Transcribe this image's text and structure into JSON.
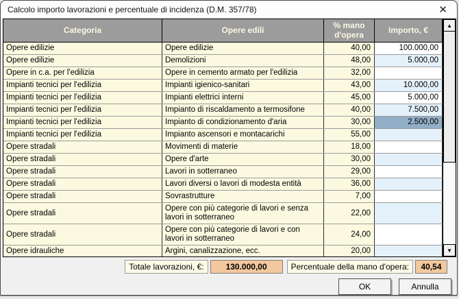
{
  "window": {
    "title": "Calcolo importo lavorazioni e percentuale di incidenza (D.M. 357/78)"
  },
  "icons": {
    "close": "✕",
    "scroll_up": "▲",
    "scroll_down": "▼"
  },
  "table": {
    "columns": [
      "Categoria",
      "Opere edili",
      "% mano d'opera",
      "Importo, €"
    ],
    "rows": [
      {
        "categoria": "Opere edilizie",
        "opera": "Opere edilizie",
        "perc": "40,00",
        "importo": "100.000,00"
      },
      {
        "categoria": "Opere edilizie",
        "opera": "Demolizioni",
        "perc": "48,00",
        "importo": "5.000,00"
      },
      {
        "categoria": "Opere in c.a. per l'edilizia",
        "opera": "Opere in cemento armato per l'edilizia",
        "perc": "32,00",
        "importo": ""
      },
      {
        "categoria": "Impianti tecnici per l'edilizia",
        "opera": "Impianti igienico-sanitari",
        "perc": "43,00",
        "importo": "10.000,00"
      },
      {
        "categoria": "Impianti tecnici per l'edilizia",
        "opera": "Impianti elettrici interni",
        "perc": "45,00",
        "importo": "5.000,00"
      },
      {
        "categoria": "Impianti tecnici per l'edilizia",
        "opera": "Impianto di riscaldamento a termosifone",
        "perc": "40,00",
        "importo": "7.500,00"
      },
      {
        "categoria": "Impianti tecnici per l'edilizia",
        "opera": "Impianto di condizionamento d'aria",
        "perc": "30,00",
        "importo": "2.500,00",
        "selected": true
      },
      {
        "categoria": "Impianti tecnici per l'edilizia",
        "opera": "Impianto ascensori e montacarichi",
        "perc": "55,00",
        "importo": ""
      },
      {
        "categoria": "Opere stradali",
        "opera": "Movimenti di materie",
        "perc": "18,00",
        "importo": ""
      },
      {
        "categoria": "Opere stradali",
        "opera": "Opere d'arte",
        "perc": "30,00",
        "importo": ""
      },
      {
        "categoria": "Opere stradali",
        "opera": "Lavori in sotterraneo",
        "perc": "29,00",
        "importo": ""
      },
      {
        "categoria": "Opere stradali",
        "opera": "Lavori diversi o lavori di modesta entità",
        "perc": "36,00",
        "importo": ""
      },
      {
        "categoria": "Opere stradali",
        "opera": "Sovrastrutture",
        "perc": "7,00",
        "importo": ""
      },
      {
        "categoria": "Opere stradali",
        "opera": "Opere con più categorie di lavori e senza lavori in sotterraneo",
        "perc": "22,00",
        "importo": "",
        "tall": true
      },
      {
        "categoria": "Opere stradali",
        "opera": "Opere con più categorie di lavori e con lavori in sotterraneo",
        "perc": "24,00",
        "importo": "",
        "tall": true
      },
      {
        "categoria": "Opere idrauliche",
        "opera": "Argini, canalizzazione, ecc.",
        "perc": "20,00",
        "importo": ""
      }
    ]
  },
  "totals": {
    "total_label": "Totale lavorazioni, €:",
    "total_value": "130.000,00",
    "perc_label": "Percentuale della mano d'opera:",
    "perc_value": "40,54"
  },
  "buttons": {
    "ok": "OK",
    "cancel": "Annulla"
  },
  "colors": {
    "row_ivory": "#FBFAE1",
    "importo_alt_blue": "#E4F1FA",
    "importo_selected": "#93AEC7",
    "header_gray": "#9C9C9C",
    "header_text": "#FBF7E2",
    "totals_orange": "#F3C89E",
    "dialog_bg": "#F0F0F0"
  }
}
